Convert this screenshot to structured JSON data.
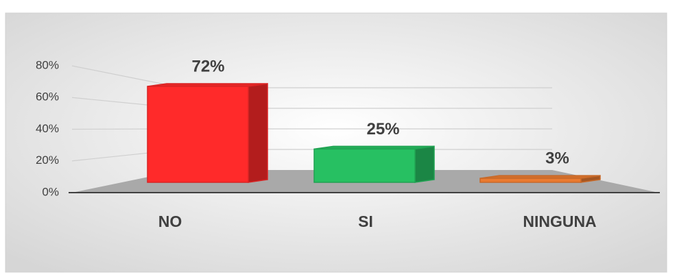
{
  "chart_data": {
    "type": "bar3d",
    "categories": [
      "NO",
      "SI",
      "NINGUNA"
    ],
    "values": [
      72,
      25,
      3
    ],
    "value_labels": [
      "72%",
      "25%",
      "3%"
    ],
    "colors": [
      "#ff2a2a",
      "#27c062",
      "#ea7b30"
    ],
    "ylim": [
      0,
      80
    ],
    "yticks": [
      {
        "value": 0,
        "label": "0%"
      },
      {
        "value": 20,
        "label": "20%"
      },
      {
        "value": 40,
        "label": "40%"
      },
      {
        "value": 60,
        "label": "60%"
      },
      {
        "value": 80,
        "label": "80%"
      }
    ],
    "grid": true
  }
}
